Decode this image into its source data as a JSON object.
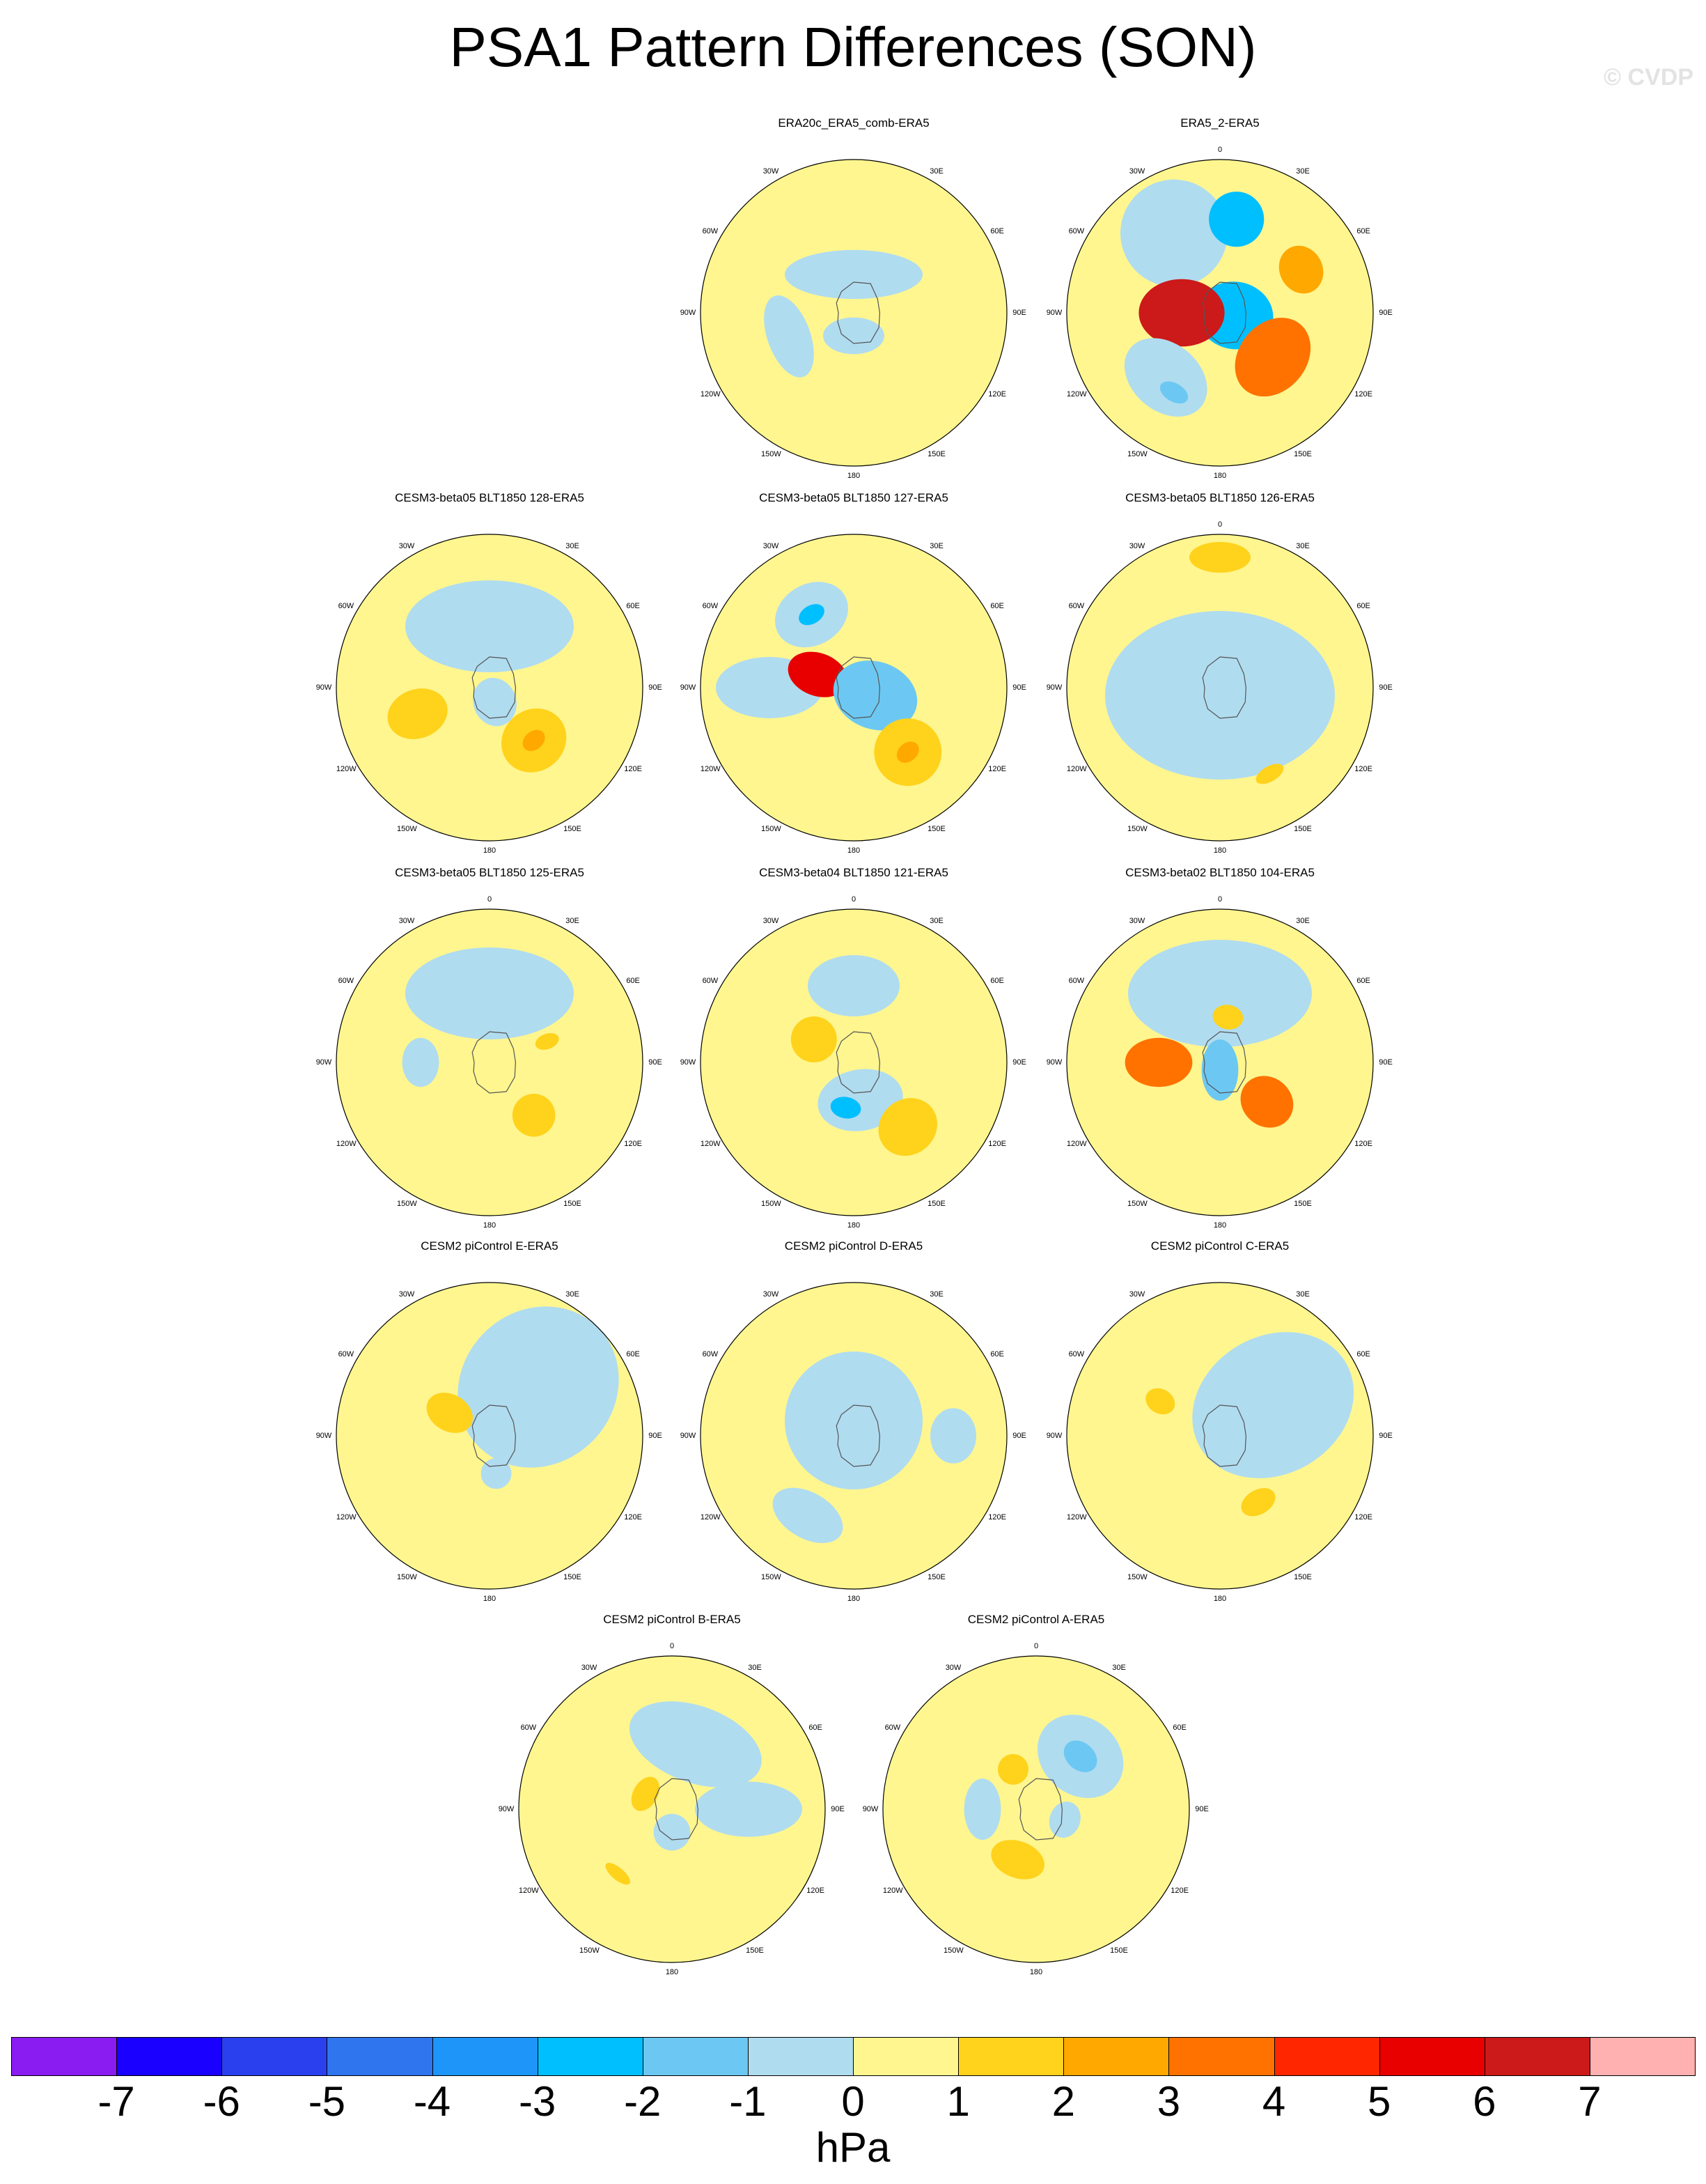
{
  "title": "PSA1 Pattern Differences (SON)",
  "watermark": "© CVDP",
  "lon_labels": [
    "0",
    "30E",
    "60E",
    "90E",
    "120E",
    "150E",
    "180",
    "150W",
    "120W",
    "90W",
    "60W",
    "30W"
  ],
  "background_color": "#FFF68F",
  "panels": [
    {
      "title": "ERA20c_ERA5_comb-ERA5",
      "lon_labels_shown": [
        "30E",
        "60E",
        "90E",
        "120E",
        "150E",
        "180",
        "150W",
        "120W",
        "90W",
        "60W",
        "30W"
      ],
      "features": [
        {
          "lon": 0,
          "r": 0.25,
          "rx": 0.45,
          "ry": 0.16,
          "level": -1
        },
        {
          "lon": 250,
          "r": 0.45,
          "rx": 0.28,
          "ry": 0.14,
          "level": -1
        },
        {
          "lon": 180,
          "r": 0.15,
          "rx": 0.2,
          "ry": 0.12,
          "level": -1
        }
      ]
    },
    {
      "title": "ERA5_2-ERA5",
      "lon_labels_shown": [
        "0",
        "30E",
        "60E",
        "90E",
        "120E",
        "150E",
        "180",
        "150W",
        "120W",
        "90W",
        "60W",
        "30W"
      ],
      "features": [
        {
          "lon": 330,
          "r": 0.6,
          "rx": 0.35,
          "ry": 0.35,
          "level": -1
        },
        {
          "lon": 10,
          "r": 0.62,
          "rx": 0.18,
          "ry": 0.18,
          "level": -3
        },
        {
          "lon": 62,
          "r": 0.6,
          "rx": 0.16,
          "ry": 0.14,
          "level": 2
        },
        {
          "lon": 100,
          "r": 0.1,
          "rx": 0.22,
          "ry": 0.25,
          "level": -3
        },
        {
          "lon": 270,
          "r": 0.25,
          "rx": 0.22,
          "ry": 0.28,
          "level": 6
        },
        {
          "lon": 130,
          "r": 0.45,
          "rx": 0.28,
          "ry": 0.22,
          "level": 3
        },
        {
          "lon": 220,
          "r": 0.55,
          "rx": 0.3,
          "ry": 0.22,
          "level": -1
        },
        {
          "lon": 210,
          "r": 0.6,
          "rx": 0.1,
          "ry": 0.06,
          "level": -2
        }
      ]
    },
    {
      "title": "CESM3-beta05 BLT1850 128-ERA5",
      "lon_labels_shown": [
        "30E",
        "60E",
        "90E",
        "120E",
        "150E",
        "180",
        "150W",
        "120W",
        "90W",
        "60W",
        "30W"
      ],
      "features": [
        {
          "lon": 0,
          "r": 0.4,
          "rx": 0.55,
          "ry": 0.3,
          "level": -1
        },
        {
          "lon": 250,
          "r": 0.5,
          "rx": 0.16,
          "ry": 0.2,
          "level": 1
        },
        {
          "lon": 160,
          "r": 0.1,
          "rx": 0.14,
          "ry": 0.16,
          "level": -1
        },
        {
          "lon": 140,
          "r": 0.45,
          "rx": 0.22,
          "ry": 0.2,
          "level": 1
        },
        {
          "lon": 140,
          "r": 0.45,
          "rx": 0.08,
          "ry": 0.06,
          "level": 2
        }
      ]
    },
    {
      "title": "CESM3-beta05 BLT1850 127-ERA5",
      "lon_labels_shown": [
        "30E",
        "60E",
        "90E",
        "120E",
        "150E",
        "180",
        "150W",
        "120W",
        "90W",
        "60W",
        "30W"
      ],
      "features": [
        {
          "lon": 330,
          "r": 0.55,
          "rx": 0.25,
          "ry": 0.2,
          "level": -1
        },
        {
          "lon": 330,
          "r": 0.55,
          "rx": 0.09,
          "ry": 0.06,
          "level": -3
        },
        {
          "lon": 270,
          "r": 0.55,
          "rx": 0.2,
          "ry": 0.35,
          "level": -1
        },
        {
          "lon": 290,
          "r": 0.25,
          "rx": 0.14,
          "ry": 0.2,
          "level": 5
        },
        {
          "lon": 110,
          "r": 0.15,
          "rx": 0.22,
          "ry": 0.28,
          "level": -2
        },
        {
          "lon": 140,
          "r": 0.55,
          "rx": 0.22,
          "ry": 0.22,
          "level": 1
        },
        {
          "lon": 140,
          "r": 0.55,
          "rx": 0.08,
          "ry": 0.06,
          "level": 2
        }
      ]
    },
    {
      "title": "CESM3-beta05 BLT1850 126-ERA5",
      "lon_labels_shown": [
        "0",
        "30E",
        "60E",
        "90E",
        "120E",
        "150E",
        "180",
        "150W",
        "120W",
        "90W",
        "60W",
        "30W"
      ],
      "features": [
        {
          "lon": 180,
          "r": 0.05,
          "rx": 0.75,
          "ry": 0.55,
          "level": -1
        },
        {
          "lon": 150,
          "r": 0.65,
          "rx": 0.1,
          "ry": 0.05,
          "level": 1
        },
        {
          "lon": 0,
          "r": 0.85,
          "rx": 0.2,
          "ry": 0.1,
          "level": 1
        }
      ]
    },
    {
      "title": "CESM3-beta05 BLT1850 125-ERA5",
      "lon_labels_shown": [
        "0",
        "30E",
        "60E",
        "90E",
        "120E",
        "150E",
        "180",
        "150W",
        "120W",
        "90W",
        "60W",
        "30W"
      ],
      "features": [
        {
          "lon": 0,
          "r": 0.45,
          "rx": 0.55,
          "ry": 0.3,
          "level": -1
        },
        {
          "lon": 270,
          "r": 0.45,
          "rx": 0.16,
          "ry": 0.12,
          "level": -1
        },
        {
          "lon": 140,
          "r": 0.45,
          "rx": 0.14,
          "ry": 0.14,
          "level": 1
        },
        {
          "lon": 70,
          "r": 0.4,
          "rx": 0.05,
          "ry": 0.08,
          "level": 1
        }
      ]
    },
    {
      "title": "CESM3-beta04 BLT1850 121-ERA5",
      "lon_labels_shown": [
        "0",
        "30E",
        "60E",
        "90E",
        "120E",
        "150E",
        "180",
        "150W",
        "120W",
        "90W",
        "60W",
        "30W"
      ],
      "features": [
        {
          "lon": 0,
          "r": 0.5,
          "rx": 0.3,
          "ry": 0.2,
          "level": -1
        },
        {
          "lon": 300,
          "r": 0.3,
          "rx": 0.15,
          "ry": 0.15,
          "level": 1
        },
        {
          "lon": 170,
          "r": 0.25,
          "rx": 0.28,
          "ry": 0.2,
          "level": -1
        },
        {
          "lon": 190,
          "r": 0.3,
          "rx": 0.1,
          "ry": 0.07,
          "level": -3
        },
        {
          "lon": 140,
          "r": 0.55,
          "rx": 0.2,
          "ry": 0.18,
          "level": 1
        }
      ]
    },
    {
      "title": "CESM3-beta02 BLT1850 104-ERA5",
      "lon_labels_shown": [
        "0",
        "30E",
        "60E",
        "90E",
        "120E",
        "150E",
        "180",
        "150W",
        "120W",
        "90W",
        "60W",
        "30W"
      ],
      "features": [
        {
          "lon": 0,
          "r": 0.45,
          "rx": 0.6,
          "ry": 0.35,
          "level": -1
        },
        {
          "lon": 30,
          "r": 0.5,
          "rx": 0.12,
          "ry": 0.15,
          "level": -1
        },
        {
          "lon": 270,
          "r": 0.4,
          "rx": 0.16,
          "ry": 0.22,
          "level": 3
        },
        {
          "lon": 130,
          "r": 0.4,
          "rx": 0.16,
          "ry": 0.18,
          "level": 3
        },
        {
          "lon": 180,
          "r": 0.05,
          "rx": 0.12,
          "ry": 0.2,
          "level": -2
        },
        {
          "lon": 10,
          "r": 0.3,
          "rx": 0.1,
          "ry": 0.08,
          "level": 1
        }
      ]
    },
    {
      "title": "CESM2 piControl E-ERA5",
      "lon_labels_shown": [
        "30E",
        "60E",
        "90E",
        "120E",
        "150E",
        "180",
        "150W",
        "120W",
        "90W",
        "60W",
        "30W"
      ],
      "features": [
        {
          "lon": 45,
          "r": 0.45,
          "rx": 0.5,
          "ry": 0.55,
          "level": -1
        },
        {
          "lon": 300,
          "r": 0.3,
          "rx": 0.12,
          "ry": 0.16,
          "level": 1
        },
        {
          "lon": 170,
          "r": 0.25,
          "rx": 0.1,
          "ry": 0.1,
          "level": -1
        }
      ]
    },
    {
      "title": "CESM2 piControl D-ERA5",
      "lon_labels_shown": [
        "30E",
        "60E",
        "90E",
        "120E",
        "150E",
        "180",
        "150W",
        "120W",
        "90W",
        "60W",
        "30W"
      ],
      "features": [
        {
          "lon": 0,
          "r": 0.1,
          "rx": 0.45,
          "ry": 0.45,
          "level": -1
        },
        {
          "lon": 210,
          "r": 0.6,
          "rx": 0.25,
          "ry": 0.15,
          "level": -1
        },
        {
          "lon": 90,
          "r": 0.65,
          "rx": 0.18,
          "ry": 0.15,
          "level": -1
        }
      ]
    },
    {
      "title": "CESM2 piControl C-ERA5",
      "lon_labels_shown": [
        "30E",
        "60E",
        "90E",
        "120E",
        "150E",
        "180",
        "150W",
        "120W",
        "90W",
        "60W",
        "30W"
      ],
      "features": [
        {
          "lon": 60,
          "r": 0.4,
          "rx": 0.45,
          "ry": 0.55,
          "level": -1
        },
        {
          "lon": 300,
          "r": 0.45,
          "rx": 0.08,
          "ry": 0.1,
          "level": 1
        },
        {
          "lon": 150,
          "r": 0.5,
          "rx": 0.12,
          "ry": 0.08,
          "level": 1
        }
      ]
    },
    {
      "title": "CESM2 piControl B-ERA5",
      "lon_labels_shown": [
        "0",
        "30E",
        "60E",
        "90E",
        "120E",
        "150E",
        "180",
        "150W",
        "120W",
        "90W",
        "60W",
        "30W"
      ],
      "features": [
        {
          "lon": 20,
          "r": 0.45,
          "rx": 0.45,
          "ry": 0.25,
          "level": -1
        },
        {
          "lon": 90,
          "r": 0.5,
          "rx": 0.18,
          "ry": 0.35,
          "level": -1
        },
        {
          "lon": 20,
          "r": 0.5,
          "rx": 0.12,
          "ry": 0.08,
          "level": -1
        },
        {
          "lon": 300,
          "r": 0.2,
          "rx": 0.12,
          "ry": 0.08,
          "level": 1
        },
        {
          "lon": 180,
          "r": 0.15,
          "rx": 0.12,
          "ry": 0.12,
          "level": -1
        },
        {
          "lon": 220,
          "r": 0.55,
          "rx": 0.1,
          "ry": 0.04,
          "level": 1
        }
      ]
    },
    {
      "title": "CESM2 piControl A-ERA5",
      "lon_labels_shown": [
        "0",
        "30E",
        "60E",
        "90E",
        "120E",
        "150E",
        "180",
        "150W",
        "120W",
        "90W",
        "60W",
        "30W"
      ],
      "features": [
        {
          "lon": 40,
          "r": 0.45,
          "rx": 0.3,
          "ry": 0.25,
          "level": -1
        },
        {
          "lon": 40,
          "r": 0.45,
          "rx": 0.12,
          "ry": 0.09,
          "level": -2
        },
        {
          "lon": 330,
          "r": 0.3,
          "rx": 0.1,
          "ry": 0.1,
          "level": 1
        },
        {
          "lon": 200,
          "r": 0.35,
          "rx": 0.18,
          "ry": 0.12,
          "level": 1
        },
        {
          "lon": 270,
          "r": 0.35,
          "rx": 0.2,
          "ry": 0.12,
          "level": -1
        },
        {
          "lon": 110,
          "r": 0.2,
          "rx": 0.12,
          "ry": 0.1,
          "level": -1
        }
      ]
    }
  ],
  "colorbar": {
    "units": "hPa",
    "tick_labels": [
      "-7",
      "-6",
      "-5",
      "-4",
      "-3",
      "-2",
      "-1",
      "0",
      "1",
      "2",
      "3",
      "4",
      "5",
      "6",
      "7"
    ],
    "colors": [
      "#8A1CF2",
      "#1A00FF",
      "#2A40EE",
      "#2F75EE",
      "#1D95F9",
      "#00BFFF",
      "#6CC8F2",
      "#B0DCF0",
      "#FFF68F",
      "#FFD21C",
      "#FFA800",
      "#FF7200",
      "#FF2600",
      "#E80000",
      "#CC1919",
      "#FFB0B0"
    ]
  }
}
